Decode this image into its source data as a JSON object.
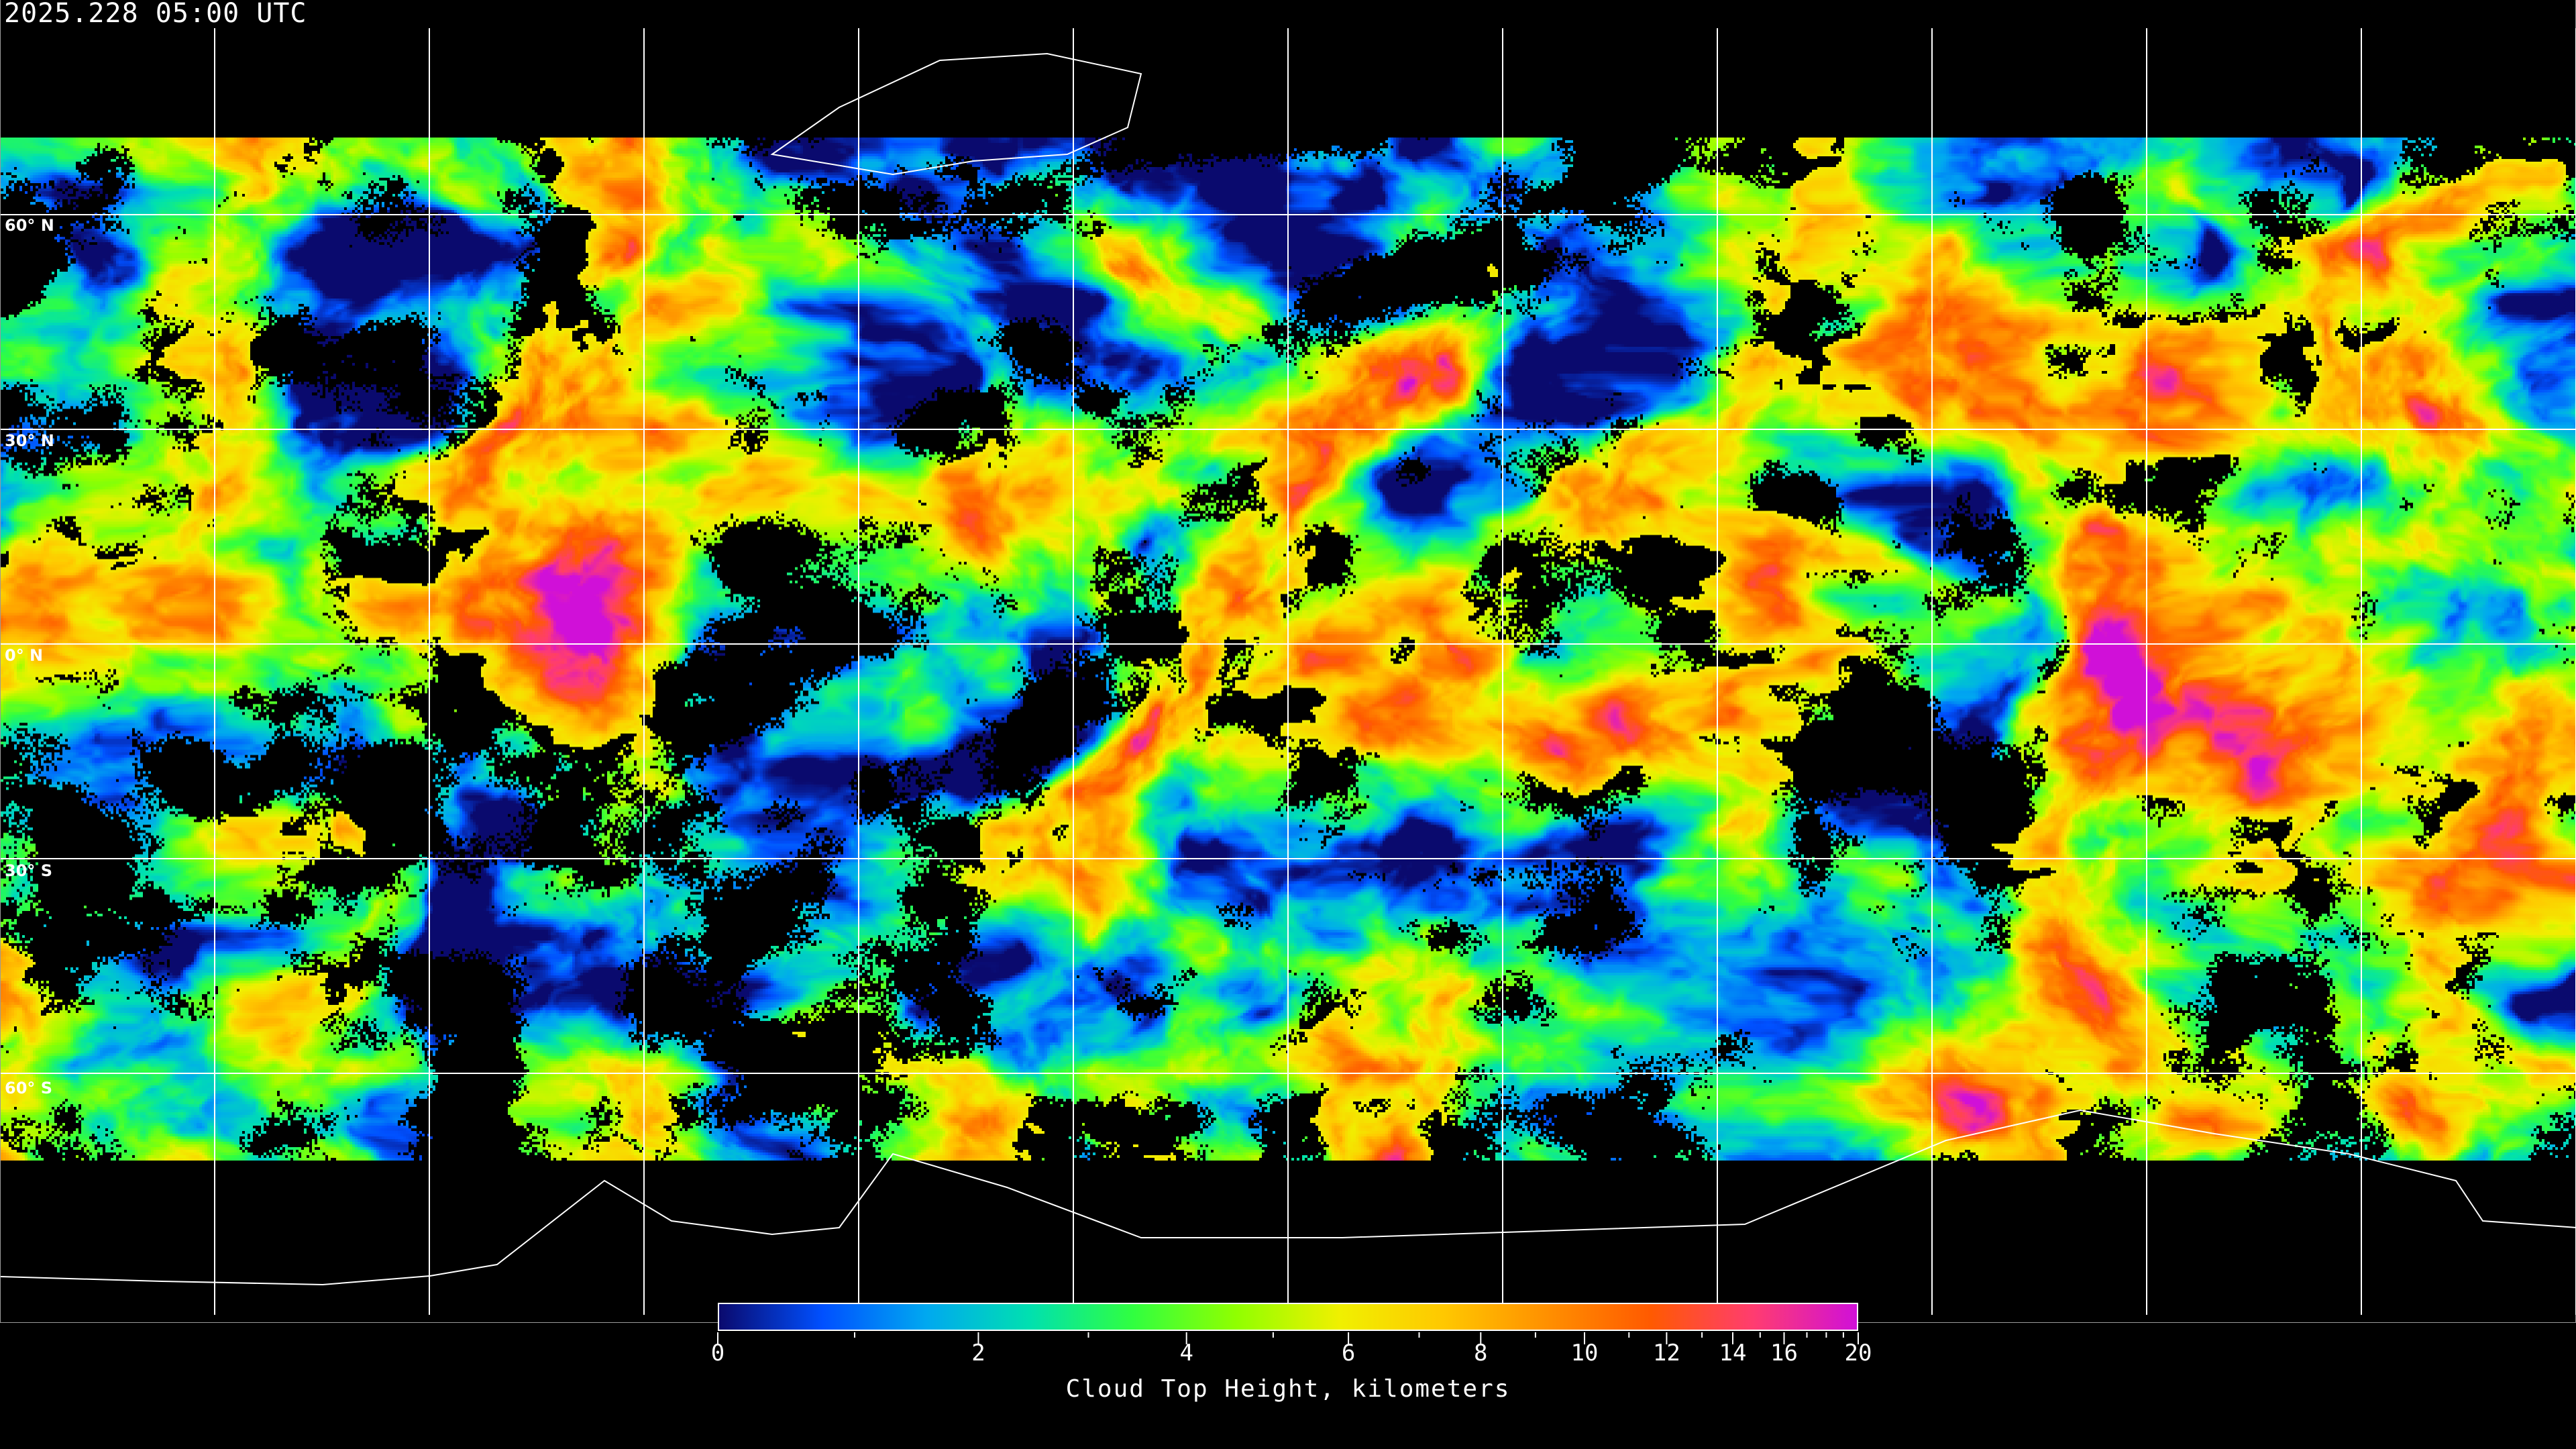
{
  "header": {
    "timestamp": "2025.228 05:00 UTC"
  },
  "map": {
    "projection": "equirectangular",
    "latitude_lines": [
      60,
      30,
      0,
      -30,
      -60
    ],
    "latitude_labels": [
      "60° N",
      "30° N",
      "0° N",
      "30° S",
      "60° S"
    ],
    "longitude_grid_spacing_deg": 30,
    "gridline_color": "#ffffff",
    "coastline_color": "#ffffff",
    "background_color": "#000000"
  },
  "colorbar": {
    "label": "Cloud Top Height, kilometers",
    "range": [
      0,
      20
    ],
    "major_ticks": [
      {
        "value": 0,
        "label": "0"
      },
      {
        "value": 2,
        "label": "2"
      },
      {
        "value": 4,
        "label": "4"
      },
      {
        "value": 6,
        "label": "6"
      },
      {
        "value": 8,
        "label": "8"
      },
      {
        "value": 10,
        "label": "10"
      },
      {
        "value": 12,
        "label": "12"
      },
      {
        "value": 14,
        "label": "14"
      },
      {
        "value": 16,
        "label": "16"
      },
      {
        "value": 20,
        "label": "20"
      }
    ],
    "minor_ticks": [
      1,
      3,
      5,
      7,
      9,
      11,
      13,
      15,
      17,
      18,
      19
    ],
    "colors": [
      "#0a0a6e",
      "#0050ff",
      "#00a8f0",
      "#00e0b0",
      "#30ff40",
      "#90ff00",
      "#f0f000",
      "#ffc800",
      "#ff9000",
      "#ff5a00",
      "#ff3c70",
      "#d010d8"
    ]
  }
}
